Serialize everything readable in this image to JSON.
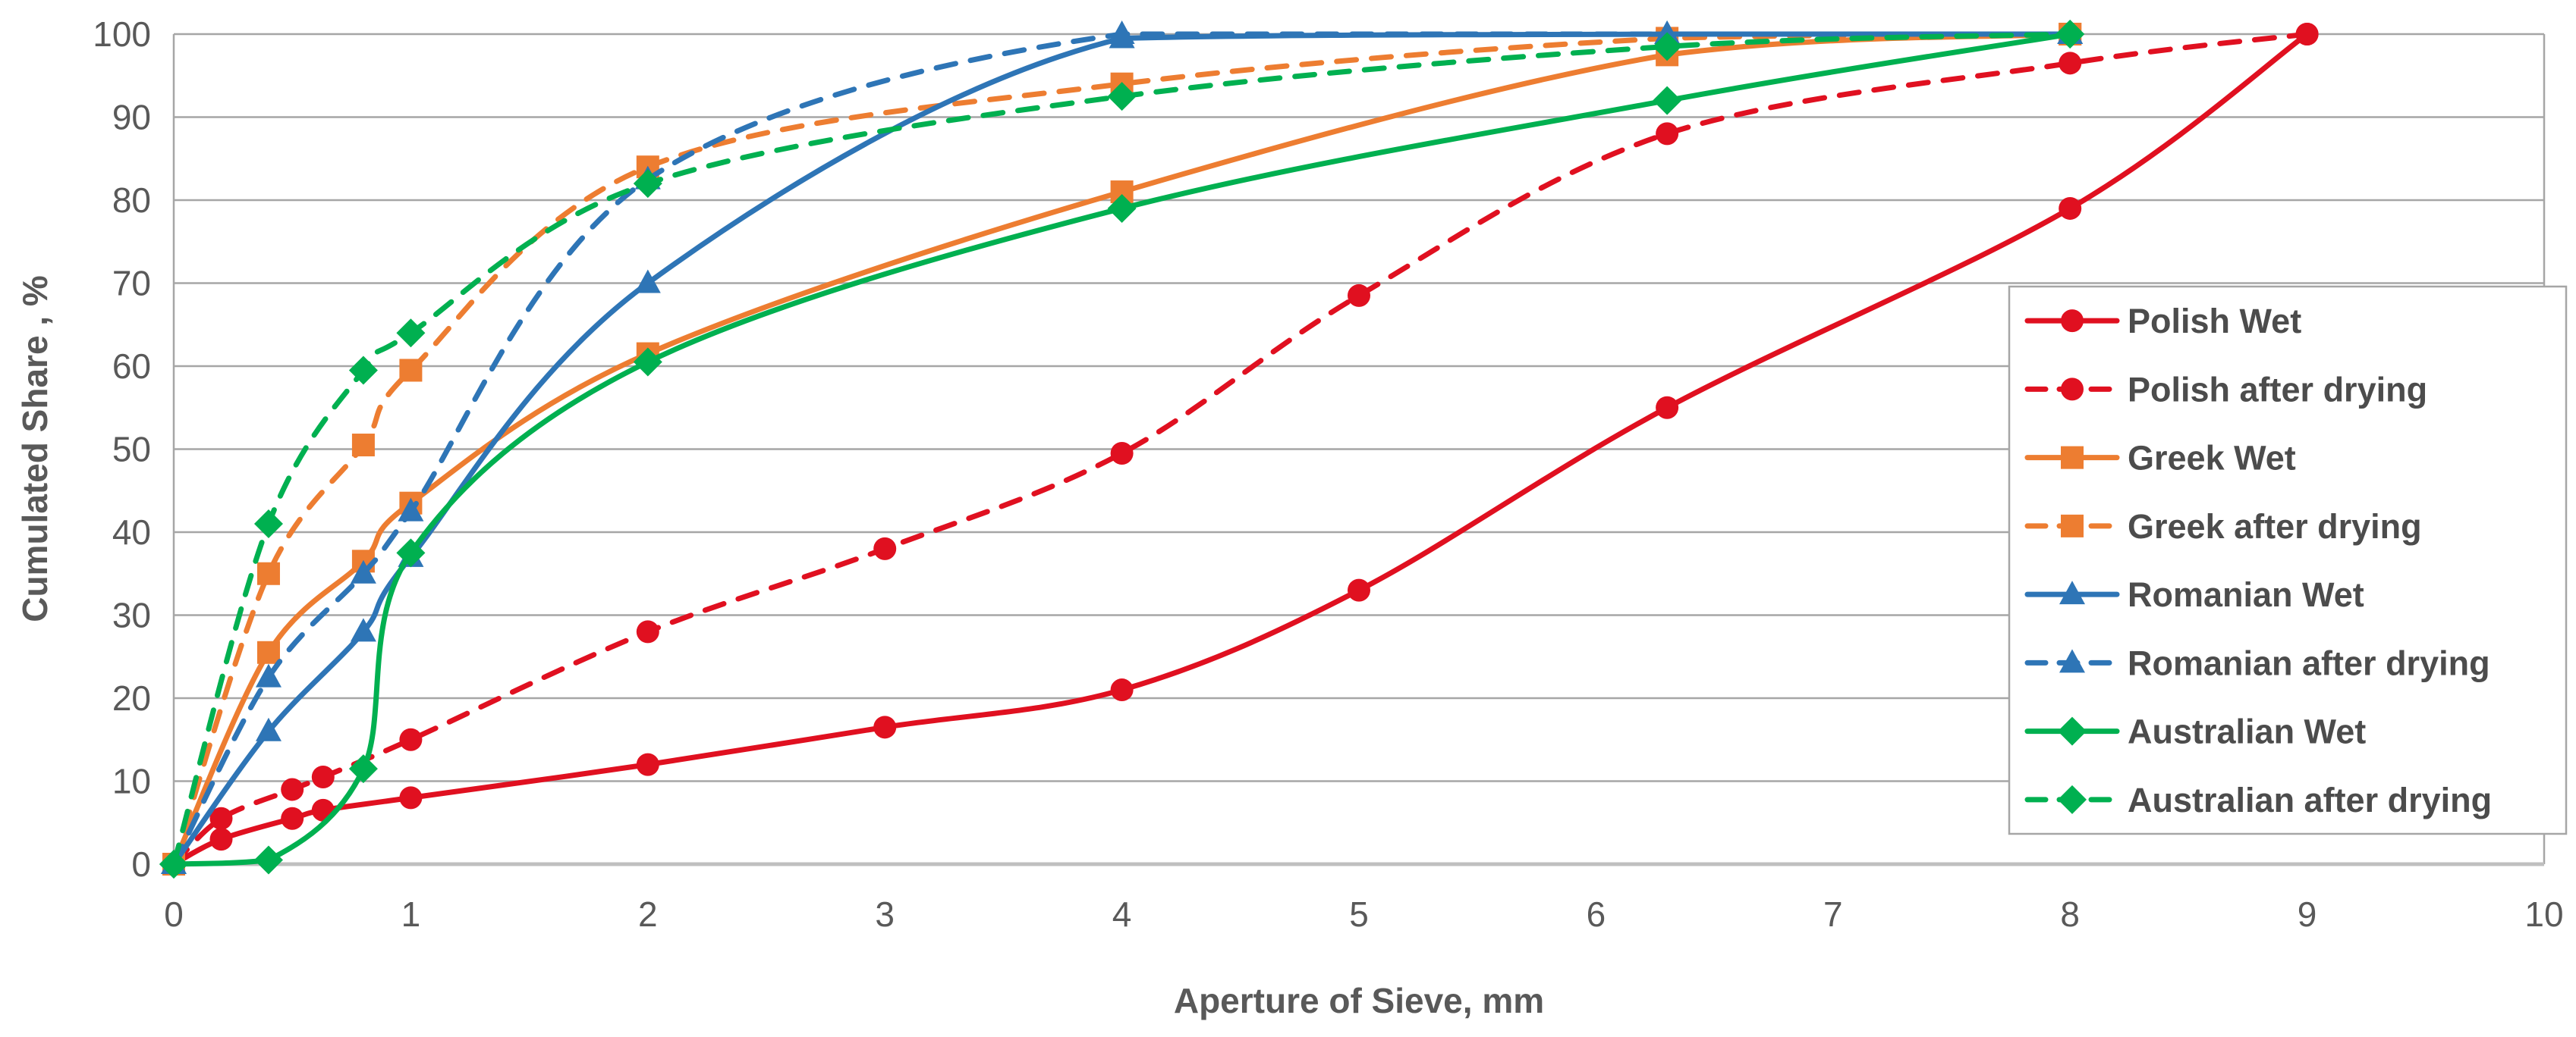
{
  "chart_data": {
    "type": "line",
    "title": "",
    "xlabel": "Aperture of Sieve, mm",
    "ylabel": "Cumulated Share , %",
    "xlim": [
      0,
      10
    ],
    "ylim": [
      0,
      100
    ],
    "xticks": [
      0,
      1,
      2,
      3,
      4,
      5,
      6,
      7,
      8,
      9,
      10
    ],
    "yticks": [
      0,
      10,
      20,
      30,
      40,
      50,
      60,
      70,
      80,
      90,
      100
    ],
    "grid": "horizontal",
    "legend_position": "right-inside",
    "colors": {
      "red": "#e01020",
      "orange": "#ed7d31",
      "blue": "#2e75b6",
      "green": "#00b050",
      "grid": "#a6a6a6",
      "axis_line": "#bfbfbf",
      "tick_text": "#595959",
      "legend_text": "#4c4c4c",
      "legend_border": "#a6a6a6"
    },
    "series": [
      {
        "name": "Polish Wet",
        "color": "#e01020",
        "line": "solid",
        "marker": "circle",
        "points": [
          [
            0,
            0
          ],
          [
            0.2,
            3
          ],
          [
            0.5,
            5.5
          ],
          [
            0.63,
            6.5
          ],
          [
            1,
            8
          ],
          [
            2,
            12
          ],
          [
            3,
            16.5
          ],
          [
            4,
            21
          ],
          [
            5,
            33
          ],
          [
            6.3,
            55
          ],
          [
            8,
            79
          ],
          [
            9,
            100
          ]
        ]
      },
      {
        "name": "Polish after drying",
        "color": "#e01020",
        "line": "dashed",
        "marker": "circle",
        "points": [
          [
            0,
            0
          ],
          [
            0.2,
            5.5
          ],
          [
            0.5,
            9
          ],
          [
            0.63,
            10.5
          ],
          [
            1,
            15
          ],
          [
            2,
            28
          ],
          [
            3,
            38
          ],
          [
            4,
            49.5
          ],
          [
            5,
            68.5
          ],
          [
            6.3,
            88
          ],
          [
            8,
            96.5
          ],
          [
            9,
            100
          ]
        ]
      },
      {
        "name": "Greek Wet",
        "color": "#ed7d31",
        "line": "solid",
        "marker": "square",
        "points": [
          [
            0,
            0
          ],
          [
            0.4,
            25.5
          ],
          [
            0.8,
            36.5
          ],
          [
            1,
            43.5
          ],
          [
            2,
            61.5
          ],
          [
            4,
            81
          ],
          [
            6.3,
            97.5
          ],
          [
            8,
            100
          ]
        ]
      },
      {
        "name": "Greek after drying",
        "color": "#ed7d31",
        "line": "dashed",
        "marker": "square",
        "points": [
          [
            0,
            0
          ],
          [
            0.4,
            35
          ],
          [
            0.8,
            50.5
          ],
          [
            1,
            59.5
          ],
          [
            2,
            84
          ],
          [
            4,
            94
          ],
          [
            6.3,
            99.5
          ],
          [
            8,
            100
          ]
        ]
      },
      {
        "name": "Romanian Wet",
        "color": "#2e75b6",
        "line": "solid",
        "marker": "triangle",
        "points": [
          [
            0,
            0
          ],
          [
            0.4,
            16
          ],
          [
            0.8,
            28
          ],
          [
            1,
            37
          ],
          [
            2,
            70
          ],
          [
            4,
            99.5
          ],
          [
            6.3,
            100
          ],
          [
            8,
            100
          ]
        ]
      },
      {
        "name": "Romanian after drying",
        "color": "#2e75b6",
        "line": "dashed",
        "marker": "triangle",
        "points": [
          [
            0,
            0
          ],
          [
            0.4,
            22.5
          ],
          [
            0.8,
            35
          ],
          [
            1,
            42.5
          ],
          [
            2,
            82.5
          ],
          [
            4,
            100
          ],
          [
            6.3,
            100
          ],
          [
            8,
            100
          ]
        ]
      },
      {
        "name": "Australian Wet",
        "color": "#00b050",
        "line": "solid",
        "marker": "diamond",
        "points": [
          [
            0,
            0
          ],
          [
            0.4,
            0.5
          ],
          [
            0.8,
            11.5
          ],
          [
            1,
            37.5
          ],
          [
            2,
            60.5
          ],
          [
            4,
            79
          ],
          [
            6.3,
            92
          ],
          [
            8,
            100
          ]
        ]
      },
      {
        "name": "Australian after drying",
        "color": "#00b050",
        "line": "dashed",
        "marker": "diamond",
        "points": [
          [
            0,
            0
          ],
          [
            0.4,
            41
          ],
          [
            0.8,
            59.5
          ],
          [
            1,
            64
          ],
          [
            2,
            82
          ],
          [
            4,
            92.5
          ],
          [
            6.3,
            98.5
          ],
          [
            8,
            100
          ]
        ]
      }
    ]
  }
}
